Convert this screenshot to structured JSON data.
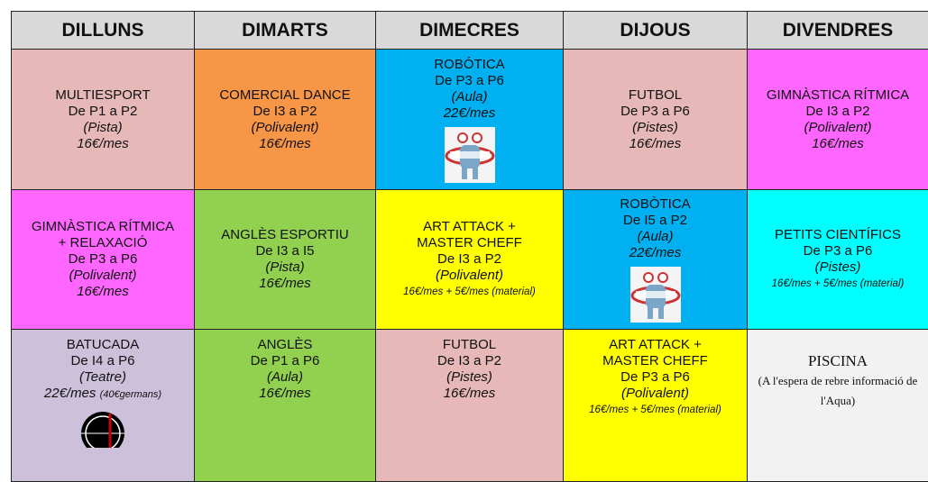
{
  "header": {
    "days": [
      "DILLUNS",
      "DIMARTS",
      "DIMECRES",
      "DIJOUS",
      "DIVENDRES"
    ]
  },
  "table": {
    "rows": [
      [
        {
          "activity": [
            "MULTIESPORT"
          ],
          "grades": "De P1 a P2",
          "place": "(Pista)",
          "price": "16€/mes"
        },
        {
          "activity": [
            "COMERCIAL DANCE"
          ],
          "grades": "De I3 a P2",
          "place": "(Polivalent)",
          "price": "16€/mes"
        },
        {
          "activity": [
            "ROBÓTICA"
          ],
          "grades": "De P3 a P6",
          "place": "(Aula)",
          "price": "22€/mes"
        },
        {
          "activity": [
            "FUTBOL"
          ],
          "grades": "De P3 a P6",
          "place": "(Pistes)",
          "price": "16€/mes"
        },
        {
          "activity": [
            "GIMNÀSTICA RÍTMICA"
          ],
          "grades": "De I3 a P2",
          "place": "(Polivalent)",
          "price": "16€/mes"
        }
      ],
      [
        {
          "activity": [
            "GIMNÀSTICA RÍTMICA",
            "+ RELAXACIÓ"
          ],
          "grades": "De P3 a P6",
          "place": "(Polivalent)",
          "price": "16€/mes"
        },
        {
          "activity": [
            "ANGLÈS ESPORTIU"
          ],
          "grades": "De I3 a I5",
          "place": "(Pista)",
          "price": "16€/mes"
        },
        {
          "activity": [
            "ART ATTACK +",
            "MASTER CHEFF"
          ],
          "grades": "De I3 a P2",
          "place": "(Polivalent)",
          "price": "16€/mes + 5€/mes (material)"
        },
        {
          "activity": [
            "ROBÒTICA"
          ],
          "grades": "De I5 a P2",
          "place": "(Aula)",
          "price": "22€/mes"
        },
        {
          "activity": [
            "PETITS CIENTÍFICS"
          ],
          "grades": "De P3 a P6",
          "place": "(Pistes)",
          "price": "16€/mes + 5€/mes (material)"
        }
      ],
      [
        {
          "activity": [
            "BATUCADA"
          ],
          "grades": "De I4 a P6",
          "place": "(Teatre)",
          "price": "22€/mes",
          "price_note": "(40€germans)"
        },
        {
          "activity": [
            "ANGLÈS"
          ],
          "grades": "De P1 a P6",
          "place": "(Aula)",
          "price": "16€/mes"
        },
        {
          "activity": [
            "FUTBOL"
          ],
          "grades": "De I3 a P2",
          "place": "(Pistes)",
          "price": "16€/mes"
        },
        {
          "activity": [
            "ART ATTACK +",
            "MASTER CHEFF"
          ],
          "grades": "De P3 a P6",
          "place": "(Polivalent)",
          "price": "16€/mes + 5€/mes (material)"
        },
        {
          "activity": [
            "PISCINA"
          ],
          "note": "(A l'espera de rebre informació de l'Aqua)"
        }
      ]
    ]
  }
}
